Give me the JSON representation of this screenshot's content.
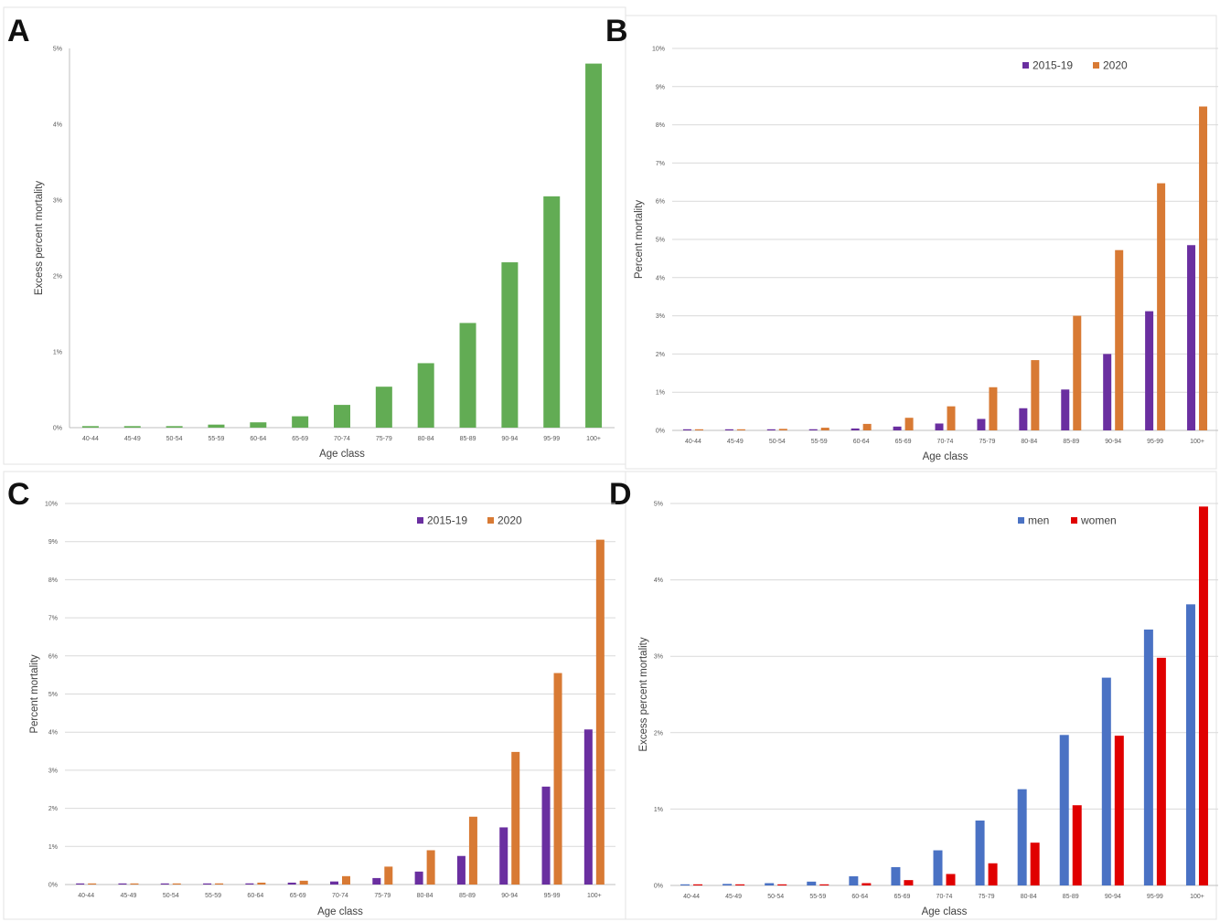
{
  "colors": {
    "green": "#62ac54",
    "purple": "#6a2fa0",
    "orange": "#d87a34",
    "blue": "#4a72c4",
    "red": "#e00000"
  },
  "chart_data": [
    {
      "panel": "A",
      "type": "bar",
      "xlabel": "Age class",
      "ylabel": "Excess percent mortality",
      "ylim": [
        0,
        5
      ],
      "yticks": [
        "0%",
        "1%",
        "2%",
        "3%",
        "4%",
        "5%"
      ],
      "grid": false,
      "categories": [
        "40-44",
        "45-49",
        "50-54",
        "55-59",
        "60-64",
        "65-69",
        "70-74",
        "75-79",
        "80-84",
        "85-89",
        "90-94",
        "95-99",
        "100+"
      ],
      "series": [
        {
          "color": "green",
          "values": [
            0.02,
            0.02,
            0.02,
            0.04,
            0.07,
            0.15,
            0.3,
            0.54,
            0.85,
            1.38,
            2.18,
            3.05,
            4.8
          ]
        }
      ]
    },
    {
      "panel": "B",
      "type": "bar",
      "xlabel": "Age class",
      "ylabel": "Percent mortality",
      "ylim": [
        0,
        10
      ],
      "yticks": [
        "0%",
        "1%",
        "2%",
        "3%",
        "4%",
        "5%",
        "6%",
        "7%",
        "8%",
        "9%",
        "10%"
      ],
      "grid": true,
      "legend": "top-right",
      "categories": [
        "40-44",
        "45-49",
        "50-54",
        "55-59",
        "60-64",
        "65-69",
        "70-74",
        "75-79",
        "80-84",
        "85-89",
        "90-94",
        "95-99",
        "100+"
      ],
      "series": [
        {
          "name": "2015-19",
          "color": "purple",
          "values": [
            0.01,
            0.01,
            0.02,
            0.03,
            0.05,
            0.1,
            0.18,
            0.3,
            0.58,
            1.07,
            2.0,
            3.12,
            4.85
          ]
        },
        {
          "name": "2020",
          "color": "orange",
          "values": [
            0.01,
            0.02,
            0.04,
            0.07,
            0.17,
            0.33,
            0.63,
            1.13,
            1.84,
            3.0,
            4.72,
            6.47,
            8.48
          ]
        }
      ]
    },
    {
      "panel": "C",
      "type": "bar",
      "xlabel": "Age class",
      "ylabel": "Percent mortality",
      "ylim": [
        0,
        10
      ],
      "yticks": [
        "0%",
        "1%",
        "2%",
        "3%",
        "4%",
        "5%",
        "6%",
        "7%",
        "8%",
        "9%",
        "10%"
      ],
      "grid": true,
      "legend": "top-right",
      "categories": [
        "40-44",
        "45-49",
        "50-54",
        "55-59",
        "60-64",
        "65-69",
        "70-74",
        "75-79",
        "80-84",
        "85-89",
        "90-94",
        "95-99",
        "100+"
      ],
      "series": [
        {
          "name": "2015-19",
          "color": "purple",
          "values": [
            0.01,
            0.01,
            0.01,
            0.02,
            0.03,
            0.05,
            0.08,
            0.17,
            0.34,
            0.75,
            1.5,
            2.57,
            4.07
          ]
        },
        {
          "name": "2020",
          "color": "orange",
          "values": [
            0.01,
            0.02,
            0.02,
            0.03,
            0.05,
            0.1,
            0.22,
            0.47,
            0.9,
            1.78,
            3.48,
            5.55,
            9.05
          ]
        }
      ]
    },
    {
      "panel": "D",
      "type": "bar",
      "xlabel": "Age class",
      "ylabel": "Excess percent mortality",
      "ylim": [
        0,
        5
      ],
      "yticks": [
        "0%",
        "1%",
        "2%",
        "3%",
        "4%",
        "5%"
      ],
      "grid": true,
      "legend": "top-right",
      "categories": [
        "40-44",
        "45-49",
        "50-54",
        "55-59",
        "60-64",
        "65-69",
        "70-74",
        "75-79",
        "80-84",
        "85-89",
        "90-94",
        "95-99",
        "100+"
      ],
      "series": [
        {
          "name": "men",
          "color": "blue",
          "values": [
            0.01,
            0.02,
            0.03,
            0.05,
            0.12,
            0.24,
            0.46,
            0.85,
            1.26,
            1.97,
            2.72,
            3.35,
            3.68
          ]
        },
        {
          "name": "women",
          "color": "red",
          "values": [
            0.01,
            0.01,
            0.01,
            0.01,
            0.03,
            0.07,
            0.15,
            0.29,
            0.56,
            1.05,
            1.96,
            2.98,
            4.96
          ]
        }
      ]
    }
  ]
}
